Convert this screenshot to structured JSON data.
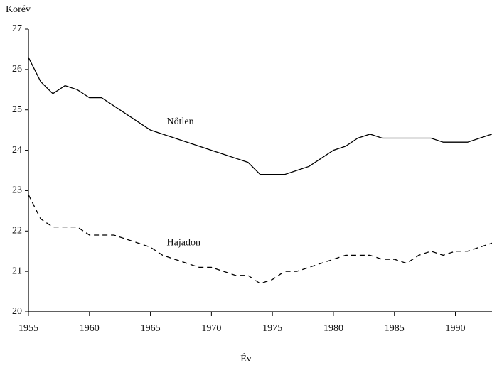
{
  "chart_data": {
    "type": "line",
    "y_label": "Korév",
    "x_label": "Év",
    "x": [
      1955,
      1956,
      1957,
      1958,
      1959,
      1960,
      1961,
      1962,
      1963,
      1964,
      1965,
      1966,
      1967,
      1968,
      1969,
      1970,
      1971,
      1972,
      1973,
      1974,
      1975,
      1976,
      1977,
      1978,
      1979,
      1980,
      1981,
      1982,
      1983,
      1984,
      1985,
      1986,
      1987,
      1988,
      1989,
      1990,
      1991,
      1992,
      1993
    ],
    "series": [
      {
        "name": "Nőtlen",
        "color": "#000000",
        "dashed": false,
        "values": [
          26.3,
          25.7,
          25.4,
          25.6,
          25.5,
          25.3,
          25.3,
          25.1,
          24.9,
          24.7,
          24.5,
          24.4,
          24.3,
          24.2,
          24.1,
          24.0,
          23.9,
          23.8,
          23.7,
          23.4,
          23.4,
          23.4,
          23.5,
          23.6,
          23.8,
          24.0,
          24.1,
          24.3,
          24.4,
          24.3,
          24.3,
          24.3,
          24.3,
          24.3,
          24.2,
          24.2,
          24.2,
          24.3,
          24.4
        ]
      },
      {
        "name": "Hajadon",
        "color": "#000000",
        "dashed": true,
        "values": [
          22.9,
          22.3,
          22.1,
          22.1,
          22.1,
          21.9,
          21.9,
          21.9,
          21.8,
          21.7,
          21.6,
          21.4,
          21.3,
          21.2,
          21.1,
          21.1,
          21.0,
          20.9,
          20.9,
          20.7,
          20.8,
          21.0,
          21.0,
          21.1,
          21.2,
          21.3,
          21.4,
          21.4,
          21.4,
          21.3,
          21.3,
          21.2,
          21.4,
          21.5,
          21.4,
          21.5,
          21.5,
          21.6,
          21.7
        ]
      }
    ],
    "xlim": [
      1955,
      1993
    ],
    "xticks": [
      1955,
      1960,
      1965,
      1970,
      1975,
      1980,
      1985,
      1990
    ],
    "ylim": [
      20,
      27
    ],
    "yticks": [
      20,
      21,
      22,
      23,
      24,
      25,
      26,
      27
    ],
    "grid": false
  }
}
